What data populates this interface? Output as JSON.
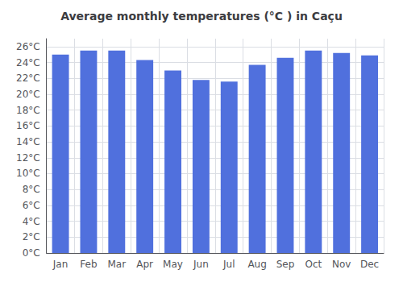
{
  "chart_data": {
    "type": "bar",
    "title": "Average monthly temperatures (°C ) in Caçu",
    "categories": [
      "Jan",
      "Feb",
      "Mar",
      "Apr",
      "May",
      "Jun",
      "Jul",
      "Aug",
      "Sep",
      "Oct",
      "Nov",
      "Dec"
    ],
    "values": [
      25.0,
      25.5,
      25.5,
      24.3,
      23.0,
      21.8,
      21.6,
      23.7,
      24.6,
      25.5,
      25.2,
      24.9
    ],
    "ylim": [
      0,
      27
    ],
    "yticks": [
      {
        "value": 0,
        "label": "0°C"
      },
      {
        "value": 2,
        "label": "2°C"
      },
      {
        "value": 4,
        "label": "4°C"
      },
      {
        "value": 6,
        "label": "6°C"
      },
      {
        "value": 8,
        "label": "8°C"
      },
      {
        "value": 10,
        "label": "10°C"
      },
      {
        "value": 12,
        "label": "12°C"
      },
      {
        "value": 14,
        "label": "14°C"
      },
      {
        "value": 16,
        "label": "16°C"
      },
      {
        "value": 18,
        "label": "18°C"
      },
      {
        "value": 20,
        "label": "20°C"
      },
      {
        "value": 22,
        "label": "22°C"
      },
      {
        "value": 24,
        "label": "24°C"
      },
      {
        "value": 26,
        "label": "26°C"
      }
    ],
    "grid": true
  }
}
